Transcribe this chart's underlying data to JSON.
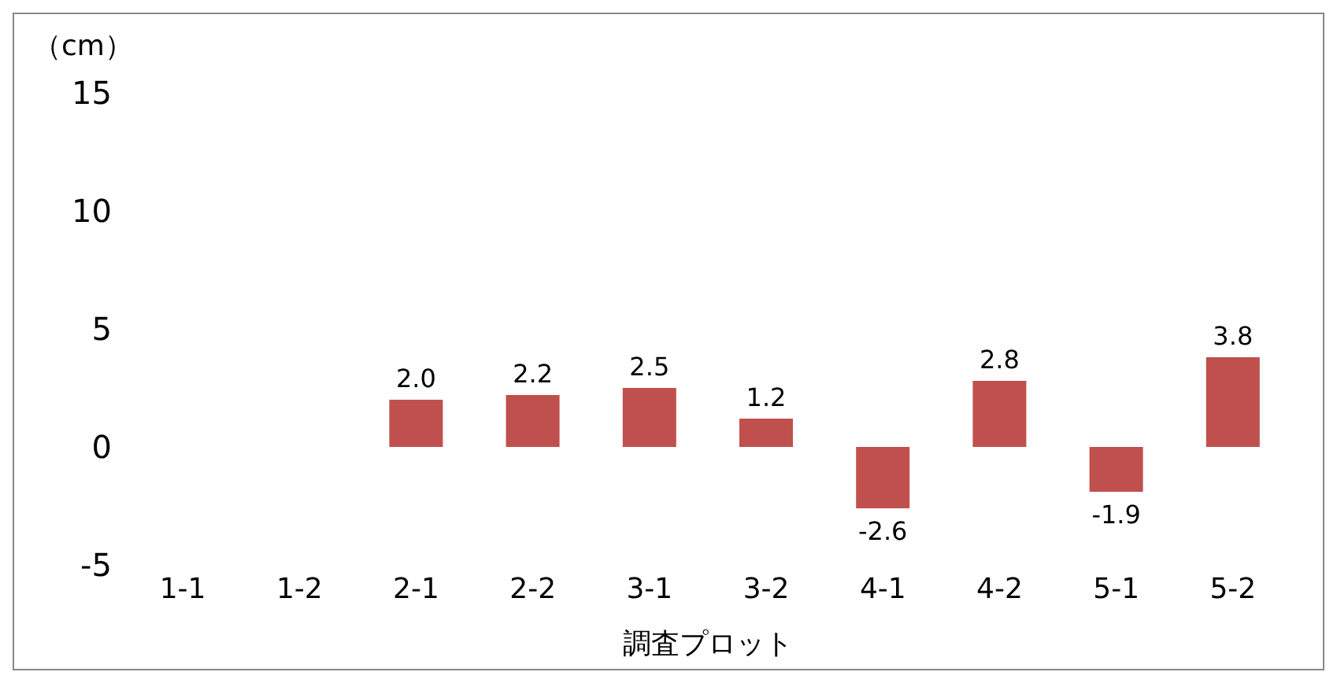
{
  "chart_data": {
    "type": "bar",
    "ylabel": "（cm）",
    "xlabel": "調査プロット",
    "categories": [
      "1-1",
      "1-2",
      "2-1",
      "2-2",
      "3-1",
      "3-2",
      "4-1",
      "4-2",
      "5-1",
      "5-2"
    ],
    "values": [
      null,
      null,
      2.0,
      2.2,
      2.5,
      1.2,
      -2.6,
      2.8,
      -1.9,
      3.8
    ],
    "value_labels": [
      null,
      null,
      "2.0",
      "2.2",
      "2.5",
      "1.2",
      "-2.6",
      "2.8",
      "-1.9",
      "3.8"
    ],
    "color": "#c0504d",
    "ylim": [
      -5,
      15
    ],
    "yticks": [
      -5,
      0,
      5,
      10,
      15
    ],
    "grid": false,
    "legend": false
  }
}
